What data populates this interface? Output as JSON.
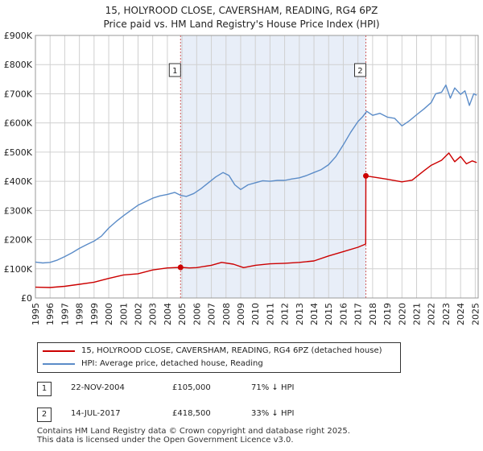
{
  "title_line1": "15, HOLYROOD CLOSE, CAVERSHAM, READING, RG4 6PZ",
  "title_line2": "Price paid vs. HM Land Registry's House Price Index (HPI)",
  "colors": {
    "property": "#cc0000",
    "hpi": "#5b8cc8",
    "shade": "#e8eef8",
    "vline": "#d06060",
    "grid": "#d0d0d0"
  },
  "chart_data": {
    "type": "line",
    "title": "Price paid vs. HM Land Registry's House Price Index (HPI)",
    "xlim": [
      1995,
      2025.2
    ],
    "ylim": [
      0,
      900000
    ],
    "x_ticks": [
      "1995",
      "1996",
      "1997",
      "1998",
      "1999",
      "2000",
      "2001",
      "2002",
      "2003",
      "2004",
      "2005",
      "2006",
      "2007",
      "2008",
      "2009",
      "2010",
      "2011",
      "2012",
      "2013",
      "2014",
      "2015",
      "2016",
      "2017",
      "2018",
      "2019",
      "2020",
      "2021",
      "2022",
      "2023",
      "2024",
      "2025"
    ],
    "y_ticks": [
      {
        "value": 0,
        "label": "£0"
      },
      {
        "value": 100000,
        "label": "£100K"
      },
      {
        "value": 200000,
        "label": "£200K"
      },
      {
        "value": 300000,
        "label": "£300K"
      },
      {
        "value": 400000,
        "label": "£400K"
      },
      {
        "value": 500000,
        "label": "£500K"
      },
      {
        "value": 600000,
        "label": "£600K"
      },
      {
        "value": 700000,
        "label": "£700K"
      },
      {
        "value": 800000,
        "label": "£800K"
      },
      {
        "value": 900000,
        "label": "£900K"
      }
    ],
    "shaded_range": [
      2004.9,
      2017.54
    ],
    "series": [
      {
        "name": "15, HOLYROOD CLOSE, CAVERSHAM, READING, RG4 6PZ (detached house)",
        "key": "property",
        "x": [
          1995.0,
          1996.0,
          1997.0,
          1998.0,
          1999.0,
          2000.0,
          2001.0,
          2002.0,
          2003.0,
          2004.0,
          2004.9,
          2005.5,
          2006.0,
          2007.0,
          2007.7,
          2008.5,
          2009.2,
          2010.0,
          2011.0,
          2012.0,
          2013.0,
          2014.0,
          2015.0,
          2016.0,
          2017.0,
          2017.53,
          2017.54,
          2018.0,
          2019.0,
          2020.0,
          2020.7,
          2021.5,
          2022.0,
          2022.7,
          2023.2,
          2023.6,
          2024.0,
          2024.4,
          2024.8,
          2025.1
        ],
        "y": [
          37000,
          36000,
          40000,
          47000,
          54000,
          67000,
          79000,
          83000,
          96000,
          103000,
          105000,
          103000,
          104000,
          112000,
          122000,
          116000,
          104000,
          112000,
          117000,
          119000,
          122000,
          127000,
          144000,
          159000,
          174000,
          185000,
          418500,
          415000,
          407000,
          398000,
          404000,
          436000,
          455000,
          472000,
          497000,
          467000,
          485000,
          460000,
          470000,
          464000
        ]
      },
      {
        "name": "HPI: Average price, detached house, Reading",
        "key": "hpi",
        "x": [
          1995.0,
          1995.5,
          1996.0,
          1996.5,
          1997.0,
          1997.5,
          1998.0,
          1998.5,
          1999.0,
          1999.5,
          2000.0,
          2000.5,
          2001.0,
          2001.5,
          2002.0,
          2002.5,
          2003.0,
          2003.5,
          2004.0,
          2004.5,
          2004.9,
          2005.3,
          2005.8,
          2006.3,
          2006.8,
          2007.3,
          2007.8,
          2008.2,
          2008.6,
          2009.0,
          2009.5,
          2010.0,
          2010.5,
          2011.0,
          2011.5,
          2012.0,
          2012.5,
          2013.0,
          2013.5,
          2014.0,
          2014.5,
          2015.0,
          2015.5,
          2016.0,
          2016.5,
          2017.0,
          2017.3,
          2017.6,
          2018.0,
          2018.5,
          2019.0,
          2019.5,
          2020.0,
          2020.5,
          2021.0,
          2021.5,
          2022.0,
          2022.3,
          2022.7,
          2023.0,
          2023.3,
          2023.6,
          2024.0,
          2024.3,
          2024.6,
          2024.9,
          2025.1
        ],
        "y": [
          123000,
          120000,
          122000,
          130000,
          142000,
          155000,
          170000,
          183000,
          195000,
          212000,
          240000,
          262000,
          282000,
          300000,
          318000,
          330000,
          342000,
          350000,
          355000,
          362000,
          352000,
          348000,
          358000,
          375000,
          395000,
          415000,
          430000,
          420000,
          388000,
          372000,
          388000,
          395000,
          402000,
          400000,
          403000,
          403000,
          408000,
          412000,
          420000,
          430000,
          440000,
          457000,
          485000,
          525000,
          568000,
          605000,
          620000,
          640000,
          626000,
          633000,
          620000,
          616000,
          590000,
          607000,
          628000,
          648000,
          670000,
          700000,
          705000,
          730000,
          685000,
          720000,
          698000,
          710000,
          660000,
          700000,
          695000
        ]
      }
    ],
    "markers": [
      {
        "label": "1",
        "x": 2004.9,
        "y": 105000
      },
      {
        "label": "2",
        "x": 2017.54,
        "y": 418500
      }
    ]
  },
  "legend": {
    "property_label": "15, HOLYROOD CLOSE, CAVERSHAM, READING, RG4 6PZ (detached house)",
    "hpi_label": "HPI: Average price, detached house, Reading"
  },
  "sales": [
    {
      "num": "1",
      "date": "22-NOV-2004",
      "price": "£105,000",
      "hpi": "71% ↓ HPI"
    },
    {
      "num": "2",
      "date": "14-JUL-2017",
      "price": "£418,500",
      "hpi": "33% ↓ HPI"
    }
  ],
  "footer": {
    "line1": "Contains HM Land Registry data © Crown copyright and database right 2025.",
    "line2": "This data is licensed under the Open Government Licence v3.0."
  }
}
